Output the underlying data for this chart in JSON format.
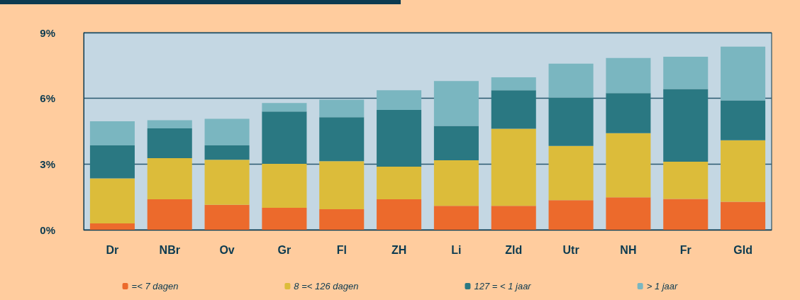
{
  "chart_data": {
    "type": "bar",
    "stacked": true,
    "categories": [
      "Dr",
      "NBr",
      "Ov",
      "Gr",
      "Fl",
      "ZH",
      "Li",
      "Zld",
      "Utr",
      "NH",
      "Fr",
      "Gld"
    ],
    "series": [
      {
        "name": "=< 7 dagen",
        "color": "#ec6a2c",
        "values": [
          0.29,
          1.39,
          1.14,
          1.0,
          0.94,
          1.39,
          1.09,
          1.09,
          1.35,
          1.48,
          1.41,
          1.28
        ]
      },
      {
        "name": "8 =< 126 dagen",
        "color": "#dcbc3a",
        "values": [
          2.06,
          1.88,
          2.06,
          2.01,
          2.19,
          1.49,
          2.08,
          3.52,
          2.48,
          2.93,
          1.7,
          2.81
        ]
      },
      {
        "name": "127 = < 1 jaar",
        "color": "#2a7882",
        "values": [
          1.5,
          1.36,
          0.65,
          2.39,
          2.01,
          2.59,
          1.57,
          1.76,
          2.21,
          1.83,
          3.32,
          1.82
        ]
      },
      {
        "name": "> 1 jaar",
        "color": "#7ab6c0",
        "values": [
          1.1,
          0.37,
          1.22,
          0.39,
          0.8,
          0.9,
          2.05,
          0.59,
          1.54,
          1.6,
          1.47,
          2.45
        ]
      }
    ],
    "ylim": [
      0,
      9
    ],
    "yticks": [
      {
        "value": 0,
        "label": "0%"
      },
      {
        "value": 3,
        "label": "3%"
      },
      {
        "value": 6,
        "label": "6%"
      },
      {
        "value": 9,
        "label": "9%"
      }
    ],
    "grid": "y",
    "legend": "bottom"
  }
}
